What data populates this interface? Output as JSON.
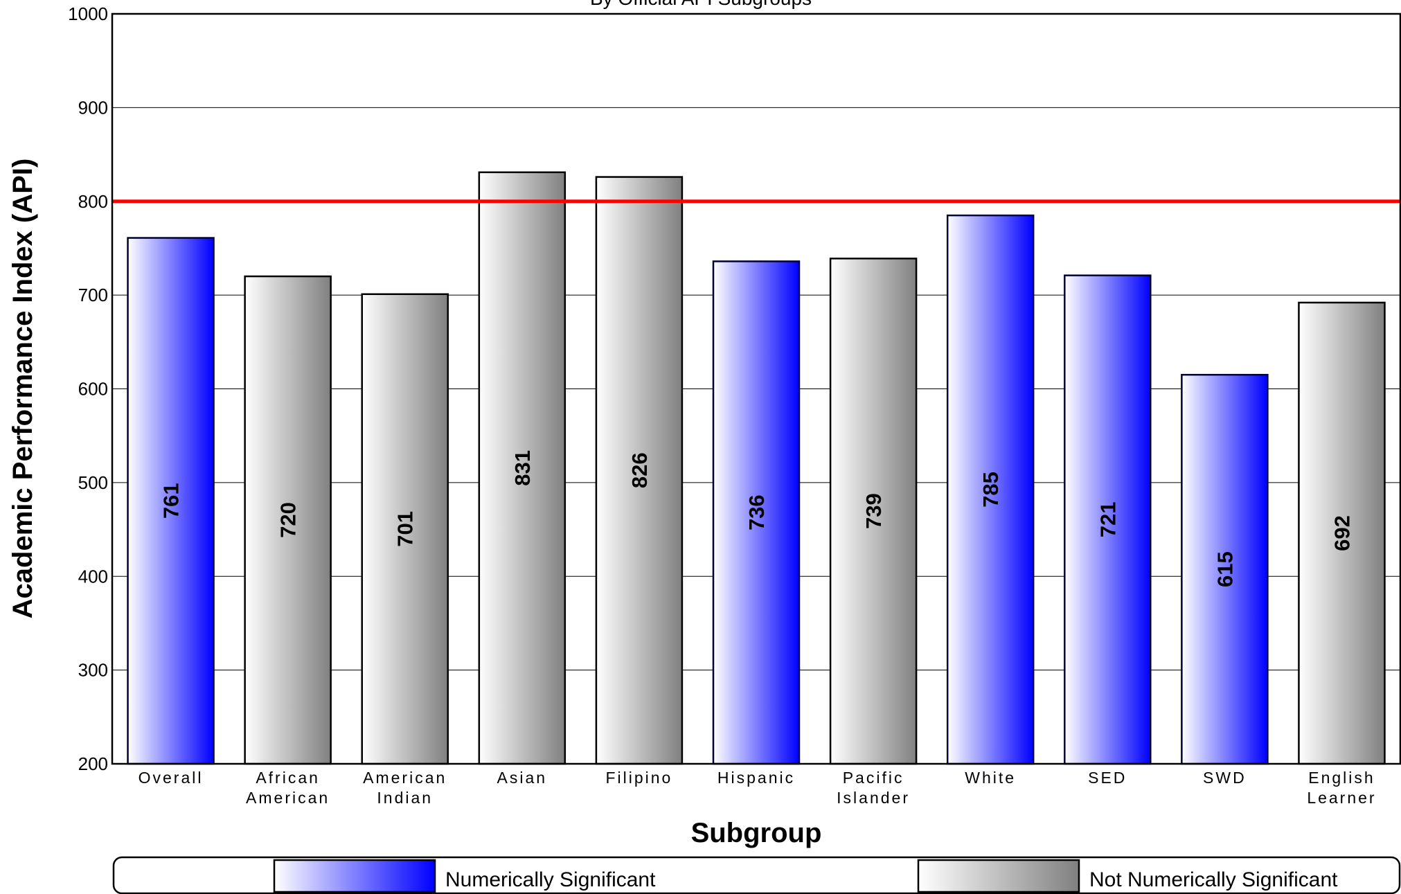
{
  "chart_data": {
    "type": "bar",
    "subtitle": "By Official API Subgroups",
    "xlabel": "Subgroup",
    "ylabel": "Academic Performance Index (API)",
    "ylim": [
      200,
      1000
    ],
    "yticks": [
      200,
      300,
      400,
      500,
      600,
      700,
      800,
      900,
      1000
    ],
    "grid": true,
    "target_line": {
      "value": 800,
      "color": "#ff0000"
    },
    "categories": [
      [
        "Overall"
      ],
      [
        "African",
        "American"
      ],
      [
        "American",
        "Indian"
      ],
      [
        "Asian"
      ],
      [
        "Filipino"
      ],
      [
        "Hispanic"
      ],
      [
        "Pacific",
        "Islander"
      ],
      [
        "White"
      ],
      [
        "SED"
      ],
      [
        "SWD"
      ],
      [
        "English",
        "Learner"
      ]
    ],
    "values": [
      761,
      720,
      701,
      831,
      826,
      736,
      739,
      785,
      721,
      615,
      692
    ],
    "significant": [
      true,
      false,
      false,
      false,
      false,
      true,
      false,
      true,
      true,
      true,
      false
    ],
    "legend": {
      "placement": "bottom",
      "items": [
        {
          "label": "Numerically Significant",
          "color": "#0000ff"
        },
        {
          "label": "Not Numerically Significant",
          "color": "#888888"
        }
      ]
    }
  }
}
